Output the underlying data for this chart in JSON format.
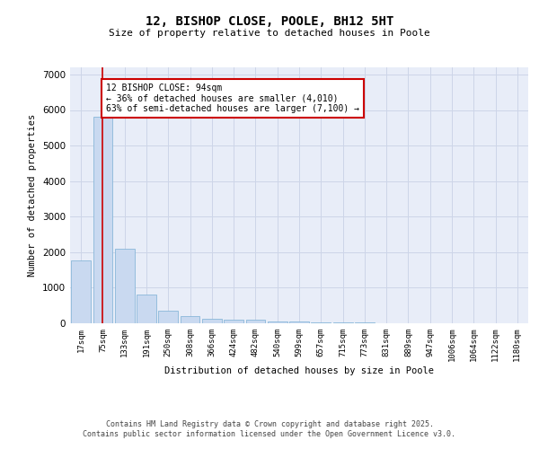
{
  "title_line1": "12, BISHOP CLOSE, POOLE, BH12 5HT",
  "title_line2": "Size of property relative to detached houses in Poole",
  "xlabel": "Distribution of detached houses by size in Poole",
  "ylabel": "Number of detached properties",
  "categories": [
    "17sqm",
    "75sqm",
    "133sqm",
    "191sqm",
    "250sqm",
    "308sqm",
    "366sqm",
    "424sqm",
    "482sqm",
    "540sqm",
    "599sqm",
    "657sqm",
    "715sqm",
    "773sqm",
    "831sqm",
    "889sqm",
    "947sqm",
    "1006sqm",
    "1064sqm",
    "1122sqm",
    "1180sqm"
  ],
  "values": [
    1780,
    5820,
    2090,
    810,
    360,
    210,
    130,
    100,
    90,
    55,
    40,
    30,
    20,
    15,
    10,
    8,
    5,
    4,
    3,
    2,
    2
  ],
  "bar_color": "#c9d9f0",
  "bar_edge_color": "#7aafd4",
  "vline_x": 1,
  "vline_color": "#cc0000",
  "annotation_text": "12 BISHOP CLOSE: 94sqm\n← 36% of detached houses are smaller (4,010)\n63% of semi-detached houses are larger (7,100) →",
  "annotation_box_color": "#cc0000",
  "annotation_bg": "white",
  "ylim": [
    0,
    7200
  ],
  "yticks": [
    0,
    1000,
    2000,
    3000,
    4000,
    5000,
    6000,
    7000
  ],
  "grid_color": "#cdd5e8",
  "bg_color": "#e8edf8",
  "footer_line1": "Contains HM Land Registry data © Crown copyright and database right 2025.",
  "footer_line2": "Contains public sector information licensed under the Open Government Licence v3.0."
}
